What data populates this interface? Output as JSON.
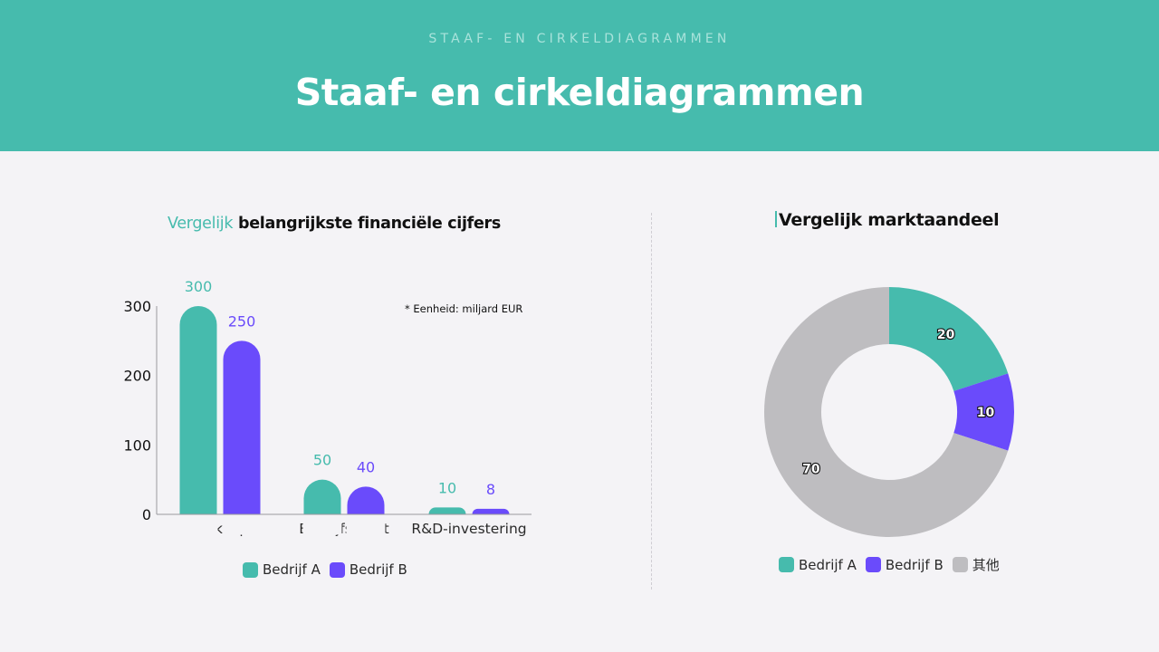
{
  "header": {
    "eyebrow": "STAAF- EN CIRKELDIAGRAMMEN",
    "title": "Staaf- en cirkeldiagrammen"
  },
  "colors": {
    "header_bg": "#46BBAD",
    "page_bg": "#F4F3F6",
    "company_a": "#46BBAD",
    "company_b": "#6A4BFB",
    "other": "#BEBDC0"
  },
  "bar_section": {
    "title_accent": "Vergelijk",
    "title_rest": " belangrijkste financiële cijfers",
    "unit_note": "* Eenheid: miljard EUR",
    "legend": [
      {
        "label": "Bedrijf A",
        "color": "#46BBAD"
      },
      {
        "label": "Bedrijf B",
        "color": "#6A4BFB"
      }
    ]
  },
  "pie_section": {
    "title": "Vergelijk marktaandeel",
    "legend": [
      {
        "label": "Bedrijf A",
        "color": "#46BBAD"
      },
      {
        "label": "Bedrijf B",
        "color": "#6A4BFB"
      },
      {
        "label": "其他",
        "color": "#BEBDC0"
      }
    ]
  },
  "chart_data": [
    {
      "type": "bar",
      "title": "Vergelijk belangrijkste financiële cijfers",
      "categories": [
        "Verkoop",
        "Bedrijfswinst",
        "R&D-investering"
      ],
      "series": [
        {
          "name": "Bedrijf A",
          "values": [
            300,
            50,
            10
          ],
          "color": "#46BBAD"
        },
        {
          "name": "Bedrijf B",
          "values": [
            250,
            40,
            8
          ],
          "color": "#6A4BFB"
        }
      ],
      "xlabel": "",
      "ylabel": "",
      "yticks": [
        0,
        100,
        200,
        300
      ],
      "ylim": [
        0,
        300
      ],
      "grid": false,
      "data_labels": true,
      "annotation": "* Eenheid: miljard EUR",
      "legend_position": "bottom"
    },
    {
      "type": "pie",
      "variant": "donut",
      "title": "Vergelijk marktaandeel",
      "categories": [
        "Bedrijf A",
        "Bedrijf B",
        "其他"
      ],
      "values": [
        20,
        10,
        70
      ],
      "colors": [
        "#46BBAD",
        "#6A4BFB",
        "#BEBDC0"
      ],
      "data_labels": true,
      "legend_position": "bottom"
    }
  ]
}
